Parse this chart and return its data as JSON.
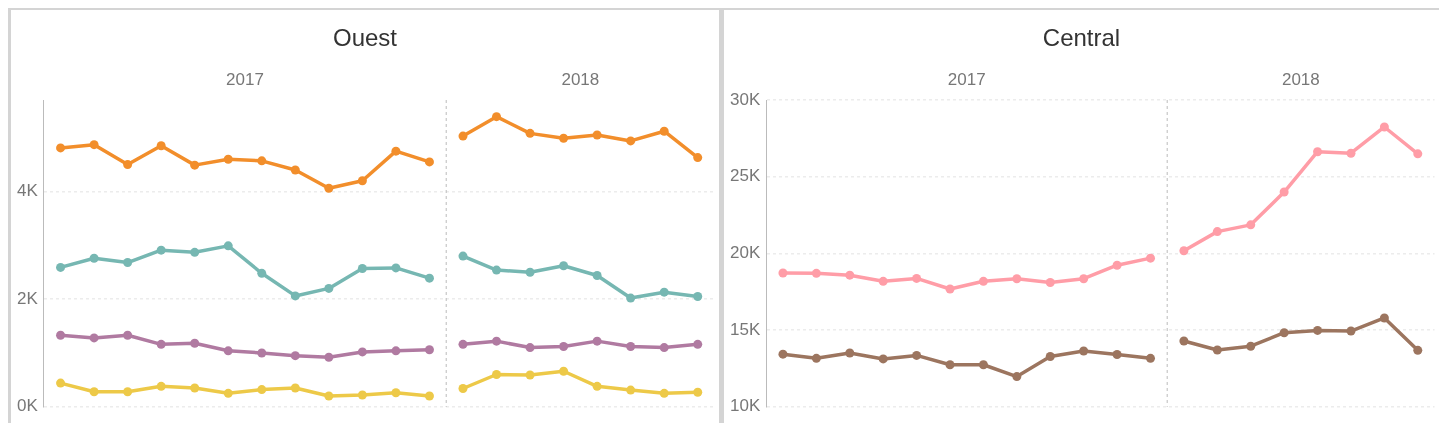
{
  "chart_data": [
    {
      "type": "line",
      "title": "Ouest",
      "annotations": [
        "2017",
        "2018"
      ],
      "categories": [
        null,
        null,
        null,
        null,
        null,
        null,
        null,
        null,
        null,
        null,
        null,
        null,
        null,
        null,
        null,
        null,
        null,
        null,
        null,
        null
      ],
      "series": [
        {
          "color": "#f28e2b",
          "values": [
            4810,
            4870,
            4500,
            4850,
            4490,
            4600,
            4570,
            4400,
            4060,
            4200,
            4750,
            4550,
            null,
            null,
            null,
            null,
            null,
            null,
            null,
            null
          ]
        },
        {
          "color": "#76b7b2",
          "values": [
            2590,
            2760,
            2680,
            2910,
            2870,
            2990,
            2480,
            2060,
            2200,
            2570,
            2580,
            2390,
            null,
            null,
            null,
            null,
            null,
            null,
            null,
            null
          ]
        },
        {
          "color": "#b07aa1",
          "values": [
            1330,
            1280,
            1330,
            1160,
            1180,
            1040,
            1000,
            950,
            920,
            1020,
            1040,
            1060,
            null,
            null,
            null,
            null,
            null,
            null,
            null,
            null
          ]
        },
        {
          "color": "#edc948",
          "values": [
            440,
            280,
            280,
            380,
            350,
            250,
            320,
            350,
            200,
            220,
            260,
            200,
            null,
            null,
            null,
            null,
            null,
            null,
            null,
            null
          ]
        },
        {
          "color": "#f28e2b",
          "values": [
            null,
            null,
            null,
            null,
            null,
            null,
            null,
            null,
            null,
            null,
            null,
            null,
            5030,
            5390,
            5080,
            4990,
            5050,
            4940,
            5120,
            4630
          ]
        },
        {
          "color": "#76b7b2",
          "values": [
            null,
            null,
            null,
            null,
            null,
            null,
            null,
            null,
            null,
            null,
            null,
            null,
            2800,
            2540,
            2500,
            2620,
            2440,
            2020,
            2130,
            2050
          ]
        },
        {
          "color": "#b07aa1",
          "values": [
            null,
            null,
            null,
            null,
            null,
            null,
            null,
            null,
            null,
            null,
            null,
            null,
            1160,
            1220,
            1100,
            1120,
            1220,
            1120,
            1100,
            1160
          ]
        },
        {
          "color": "#edc948",
          "values": [
            null,
            null,
            null,
            null,
            null,
            null,
            null,
            null,
            null,
            null,
            null,
            null,
            340,
            600,
            590,
            660,
            380,
            310,
            250,
            270
          ]
        }
      ],
      "ylim": [
        0,
        5700
      ],
      "yticks": [
        {
          "value": 0,
          "label": "0K"
        },
        {
          "value": 2000,
          "label": "2K"
        },
        {
          "value": 4000,
          "label": "4K"
        }
      ],
      "grid": "y",
      "marker": "circle",
      "line_style": "solid",
      "tick_labels": "y"
    },
    {
      "type": "line",
      "title": "Central",
      "annotations": [
        "2017",
        "2018"
      ],
      "categories": [
        null,
        null,
        null,
        null,
        null,
        null,
        null,
        null,
        null,
        null,
        null,
        null,
        null,
        null,
        null,
        null,
        null,
        null,
        null,
        null
      ],
      "series": [
        {
          "color": "#ff9da7",
          "values": [
            18720,
            18700,
            18580,
            18180,
            18370,
            17680,
            18180,
            18350,
            18100,
            18350,
            19230,
            19690,
            null,
            null,
            null,
            null,
            null,
            null,
            null,
            null
          ]
        },
        {
          "color": "#9c755f",
          "values": [
            13430,
            13160,
            13510,
            13120,
            13350,
            12740,
            12740,
            11970,
            13280,
            13640,
            13410,
            13160,
            null,
            null,
            null,
            null,
            null,
            null,
            null,
            null
          ]
        },
        {
          "color": "#ff9da7",
          "values": [
            null,
            null,
            null,
            null,
            null,
            null,
            null,
            null,
            null,
            null,
            null,
            null,
            20170,
            21420,
            21860,
            24000,
            26630,
            26530,
            28240,
            26490
          ]
        },
        {
          "color": "#9c755f",
          "values": [
            null,
            null,
            null,
            null,
            null,
            null,
            null,
            null,
            null,
            null,
            null,
            null,
            14290,
            13700,
            13950,
            14830,
            14980,
            14940,
            15790,
            13680
          ]
        }
      ],
      "ylim": [
        10000,
        30000
      ],
      "yticks": [
        {
          "value": 10000,
          "label": "10K"
        },
        {
          "value": 15000,
          "label": "15K"
        },
        {
          "value": 20000,
          "label": "20K"
        },
        {
          "value": 25000,
          "label": "25K"
        },
        {
          "value": 30000,
          "label": "30K"
        }
      ],
      "grid": "y",
      "marker": "circle",
      "line_style": "solid",
      "tick_labels": "y"
    }
  ]
}
